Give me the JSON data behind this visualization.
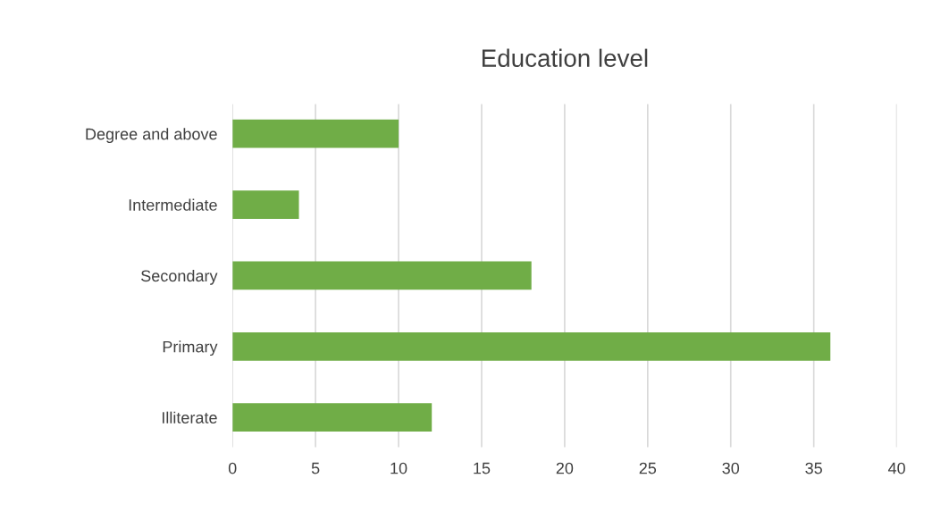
{
  "chart_data": {
    "type": "bar",
    "title": "Education level",
    "orientation": "horizontal",
    "categories": [
      "Degree and above",
      "Intermediate",
      "Secondary",
      "Primary",
      "Illiterate"
    ],
    "values": [
      10,
      4,
      18,
      36,
      12
    ],
    "color": "#70ad47",
    "xlim": [
      0,
      40
    ],
    "xticks": [
      0,
      5,
      10,
      15,
      20,
      25,
      30,
      35,
      40
    ],
    "grid": "x"
  }
}
